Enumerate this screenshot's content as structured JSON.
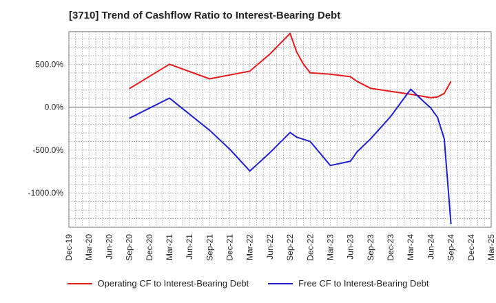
{
  "title": "[3710]  Trend of Cashflow Ratio to Interest-Bearing Debt",
  "colors": {
    "operating": "#e41a1c",
    "free": "#1f1fcf",
    "grid": "#9a9a9a",
    "axis": "#666666"
  },
  "legend": {
    "operating_label": "Operating CF to Interest-Bearing Debt",
    "free_label": "Free CF to Interest-Bearing Debt"
  },
  "chart_data": {
    "type": "line",
    "title": "[3710]  Trend of Cashflow Ratio to Interest-Bearing Debt",
    "xlabel": "",
    "ylabel": "",
    "x_ticks": [
      "Dec-19",
      "Mar-20",
      "Jun-20",
      "Sep-20",
      "Dec-20",
      "Mar-21",
      "Jun-21",
      "Sep-21",
      "Dec-21",
      "Mar-22",
      "Jun-22",
      "Sep-22",
      "Dec-22",
      "Mar-23",
      "Jun-23",
      "Sep-23",
      "Dec-23",
      "Mar-24",
      "Jun-24",
      "Sep-24",
      "Dec-24",
      "Mar-25"
    ],
    "y_ticks": [
      500,
      0,
      -500,
      -1000
    ],
    "y_tick_labels": [
      "500.0%",
      "0.0%",
      "-500.0%",
      "-1000.0%"
    ],
    "ylim": [
      -1400,
      880
    ],
    "grid": true,
    "legend_position": "bottom",
    "series": [
      {
        "name": "Operating CF to Interest-Bearing Debt",
        "color": "#e41a1c",
        "points": [
          [
            "Sep-20",
            215
          ],
          [
            "Mar-21",
            500
          ],
          [
            "Sep-21",
            330
          ],
          [
            "Mar-22",
            420
          ],
          [
            "Jun-22",
            620
          ],
          [
            "Sep-22",
            860
          ],
          [
            "Oct-22",
            640
          ],
          [
            "Nov-22",
            500
          ],
          [
            "Dec-22",
            400
          ],
          [
            "Mar-23",
            385
          ],
          [
            "Jun-23",
            355
          ],
          [
            "Jul-23",
            300
          ],
          [
            "Sep-23",
            220
          ],
          [
            "Dec-23",
            185
          ],
          [
            "Mar-24",
            150
          ],
          [
            "Jun-24",
            110
          ],
          [
            "Jul-24",
            120
          ],
          [
            "Aug-24",
            160
          ],
          [
            "Sep-24",
            300
          ]
        ]
      },
      {
        "name": "Free CF to Interest-Bearing Debt",
        "color": "#1f1fcf",
        "points": [
          [
            "Sep-20",
            -130
          ],
          [
            "Mar-21",
            105
          ],
          [
            "Sep-21",
            -270
          ],
          [
            "Dec-21",
            -490
          ],
          [
            "Mar-22",
            -745
          ],
          [
            "Jun-22",
            -530
          ],
          [
            "Sep-22",
            -295
          ],
          [
            "Oct-22",
            -350
          ],
          [
            "Dec-22",
            -400
          ],
          [
            "Mar-23",
            -680
          ],
          [
            "Jun-23",
            -630
          ],
          [
            "Jul-23",
            -520
          ],
          [
            "Sep-23",
            -370
          ],
          [
            "Dec-23",
            -110
          ],
          [
            "Mar-24",
            210
          ],
          [
            "May-24",
            60
          ],
          [
            "Jun-24",
            -10
          ],
          [
            "Jul-24",
            -120
          ],
          [
            "Aug-24",
            -370
          ],
          [
            "Sep-24",
            -1360
          ]
        ]
      }
    ]
  }
}
